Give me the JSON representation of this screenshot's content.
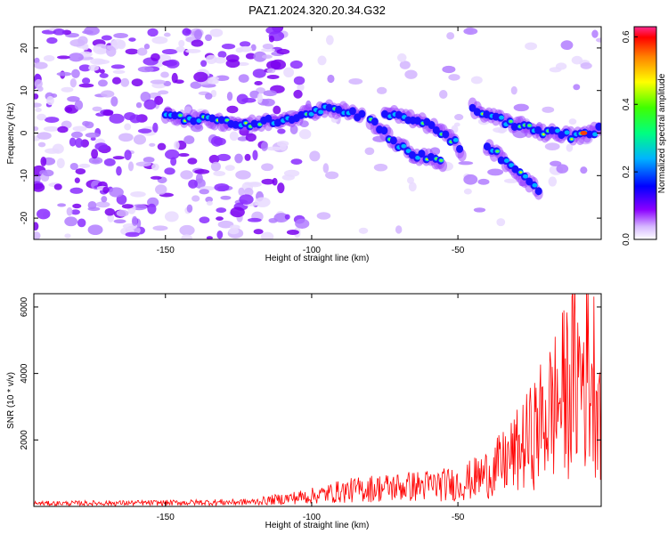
{
  "page_title": "PAZ1.2024.320.20.34.G32",
  "chart_data": [
    {
      "type": "heatmap",
      "title": "PAZ1.2024.320.20.34.G32",
      "xlabel": "Height of straight line (km)",
      "ylabel": "Frequency (Hz)",
      "xlim": [
        -195,
        -1
      ],
      "ylim": [
        -25,
        25
      ],
      "xticks": [
        -150,
        -100,
        -50
      ],
      "yticks": [
        -20,
        -10,
        0,
        10,
        20
      ],
      "colorbar": {
        "label": "Normalized spectral amplitude",
        "range": [
          0.0,
          0.63
        ],
        "ticks": [
          "0.0",
          "0.2",
          "0.4",
          "0.6"
        ],
        "colormap": [
          "#ffffff",
          "#d6b8ff",
          "#7f00ff",
          "#0000ff",
          "#00ffff",
          "#00ff00",
          "#ffff00",
          "#ff8000",
          "#ff0000",
          "#ff1a8c"
        ]
      },
      "ridges": [
        {
          "x": [
            -150,
            -135,
            -120,
            -105,
            -95,
            -88,
            -82
          ],
          "y": [
            4,
            3,
            2,
            4,
            6,
            5,
            4
          ]
        },
        {
          "x": [
            -80,
            -75,
            -70,
            -65,
            -60,
            -55
          ],
          "y": [
            3,
            0,
            -3,
            -5,
            -6,
            -7
          ]
        },
        {
          "x": [
            -75,
            -70,
            -65,
            -60,
            -55,
            -50,
            -48
          ],
          "y": [
            5,
            4,
            3,
            2,
            0,
            -3,
            -5
          ]
        },
        {
          "x": [
            -45,
            -40,
            -35,
            -30,
            -25,
            -20,
            -15,
            -10,
            -5,
            -1
          ],
          "y": [
            6,
            4,
            3,
            2,
            1,
            0,
            0,
            -1,
            0,
            1
          ]
        },
        {
          "x": [
            -40,
            -35,
            -30,
            -25,
            -22
          ],
          "y": [
            -3,
            -6,
            -9,
            -12,
            -14
          ]
        }
      ]
    },
    {
      "type": "line",
      "xlabel": "Height of straight line (km)",
      "ylabel": "SNR (10 * v/v)",
      "xlim": [
        -195,
        -1
      ],
      "ylim": [
        0,
        6400
      ],
      "xticks": [
        -150,
        -100,
        -50
      ],
      "yticks": [
        2000,
        4000,
        6000
      ],
      "color": "#ff0000",
      "series": [
        {
          "x": [
            -195,
            -150,
            -120,
            -110,
            -100,
            -90,
            -80,
            -70,
            -60,
            -50,
            -45,
            -40,
            -35,
            -30,
            -25,
            -20,
            -15,
            -10,
            -5,
            -1
          ],
          "values": [
            100,
            120,
            150,
            250,
            350,
            500,
            600,
            650,
            700,
            750,
            900,
            1100,
            1400,
            1800,
            2300,
            3000,
            3600,
            4300,
            4600,
            3800
          ]
        }
      ]
    }
  ]
}
